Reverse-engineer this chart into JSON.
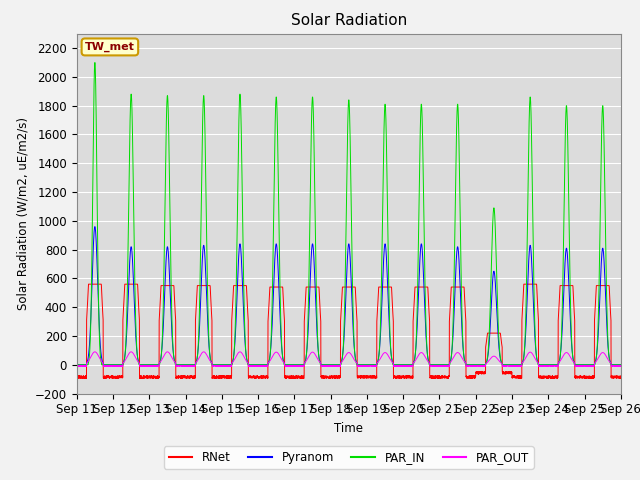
{
  "title": "Solar Radiation",
  "ylabel": "Solar Radiation (W/m2, uE/m2/s)",
  "xlabel": "Time",
  "ylim": [
    -200,
    2300
  ],
  "yticks": [
    -200,
    0,
    200,
    400,
    600,
    800,
    1000,
    1200,
    1400,
    1600,
    1800,
    2000,
    2200
  ],
  "xtick_labels": [
    "Sep 11",
    "Sep 12",
    "Sep 13",
    "Sep 14",
    "Sep 15",
    "Sep 16",
    "Sep 17",
    "Sep 18",
    "Sep 19",
    "Sep 20",
    "Sep 21",
    "Sep 22",
    "Sep 23",
    "Sep 24",
    "Sep 25",
    "Sep 26"
  ],
  "annotation_text": "TW_met",
  "annotation_bg": "#FFFFCC",
  "annotation_border": "#CC9900",
  "colors": {
    "RNet": "#FF0000",
    "Pyranom": "#0000FF",
    "PAR_IN": "#00DD00",
    "PAR_OUT": "#FF00FF"
  },
  "background_color": "#DCDCDC",
  "grid_color": "#FFFFFF",
  "n_days": 15,
  "day_points": 288
}
